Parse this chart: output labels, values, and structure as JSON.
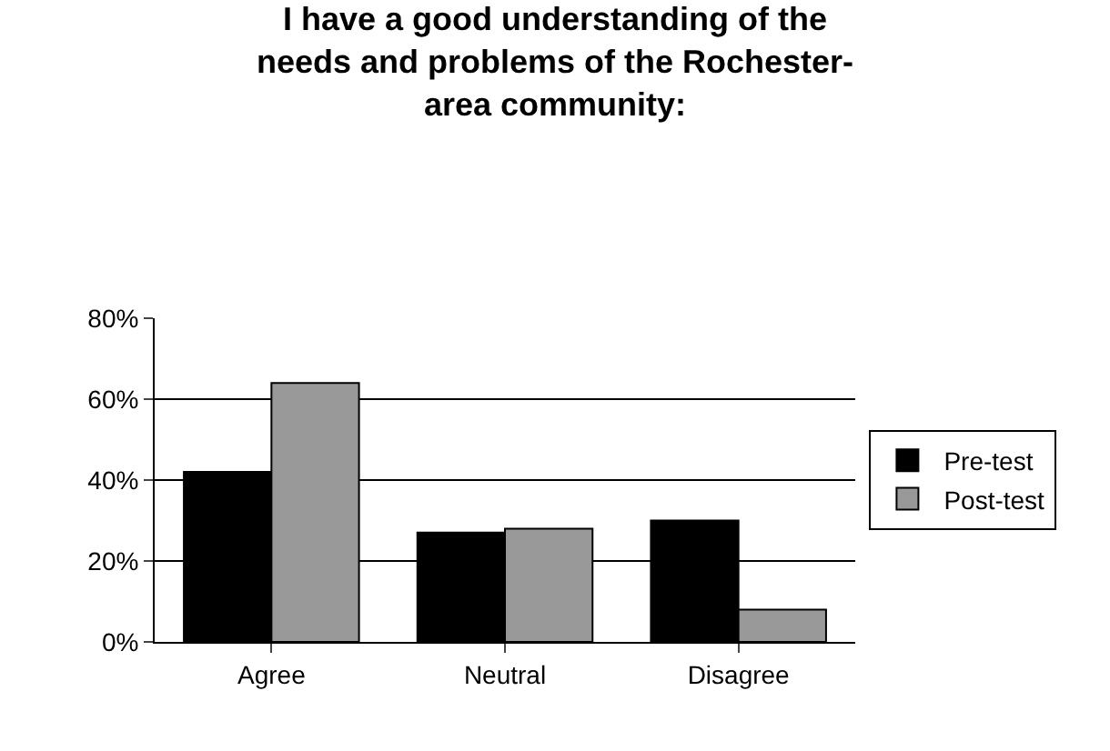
{
  "chart_data": {
    "type": "bar",
    "title": "I have a good understanding of the needs and problems of the Rochester-area community:",
    "categories": [
      "Agree",
      "Neutral",
      "Disagree"
    ],
    "series": [
      {
        "name": "Pre-test",
        "color": "#000000",
        "values": [
          42,
          27,
          30
        ]
      },
      {
        "name": "Post-test",
        "color": "#999999",
        "values": [
          64,
          28,
          8
        ]
      }
    ],
    "ylim": [
      0,
      80
    ],
    "yticks": [
      {
        "value": 0,
        "label": "0%"
      },
      {
        "value": 20,
        "label": "20%"
      },
      {
        "value": 40,
        "label": "40%"
      },
      {
        "value": 60,
        "label": "60%"
      },
      {
        "value": 80,
        "label": "80%"
      }
    ],
    "grid": "y",
    "legend": "right"
  }
}
